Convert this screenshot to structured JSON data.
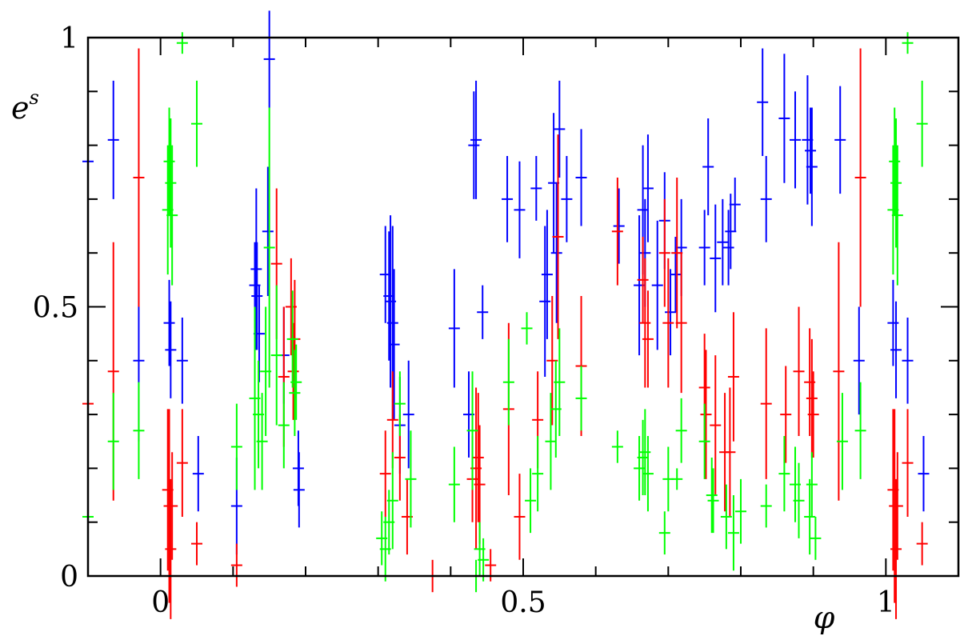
{
  "chart_data": {
    "type": "scatter",
    "title": "",
    "xlabel": "φ",
    "ylabel_base": "e",
    "ylabel_sup": "s",
    "xlim": [
      -0.1,
      1.1
    ],
    "ylim": [
      0,
      1
    ],
    "x_ticks": [
      {
        "value": 0,
        "label": "0"
      },
      {
        "value": 0.5,
        "label": "0.5"
      },
      {
        "value": 1,
        "label": "1"
      }
    ],
    "y_ticks": [
      {
        "value": 0,
        "label": "0"
      },
      {
        "value": 0.5,
        "label": "0.5"
      },
      {
        "value": 1,
        "label": "1"
      }
    ],
    "x_minor_step": 0.1,
    "y_minor_step": 0.1,
    "grid": false,
    "series": [
      {
        "color": "#0000ff",
        "points": [
          [
            -0.1,
            0.77,
            0.07
          ],
          [
            -0.065,
            0.81,
            0.11
          ],
          [
            -0.03,
            0.4,
            0.15
          ],
          [
            0.012,
            0.47,
            0.08
          ],
          [
            0.014,
            0.42,
            0.09
          ],
          [
            0.03,
            0.4,
            0.08
          ],
          [
            0.052,
            0.19,
            0.07
          ],
          [
            0.105,
            0.13,
            0.09
          ],
          [
            0.13,
            0.54,
            0.08
          ],
          [
            0.132,
            0.57,
            0.15
          ],
          [
            0.133,
            0.52,
            0.1
          ],
          [
            0.136,
            0.45,
            0.09
          ],
          [
            0.148,
            0.64,
            0.12
          ],
          [
            0.15,
            0.96,
            0.09
          ],
          [
            0.17,
            0.41,
            0.09
          ],
          [
            0.19,
            0.2,
            0.07
          ],
          [
            0.191,
            0.16,
            0.07
          ],
          [
            0.31,
            0.56,
            0.09
          ],
          [
            0.315,
            0.52,
            0.12
          ],
          [
            0.317,
            0.51,
            0.16
          ],
          [
            0.32,
            0.47,
            0.18
          ],
          [
            0.322,
            0.43,
            0.14
          ],
          [
            0.33,
            0.28,
            0.09
          ],
          [
            0.342,
            0.3,
            0.1
          ],
          [
            0.405,
            0.46,
            0.11
          ],
          [
            0.425,
            0.3,
            0.08
          ],
          [
            0.432,
            0.8,
            0.1
          ],
          [
            0.435,
            0.81,
            0.11
          ],
          [
            0.444,
            0.49,
            0.05
          ],
          [
            0.478,
            0.7,
            0.08
          ],
          [
            0.495,
            0.68,
            0.09
          ],
          [
            0.518,
            0.72,
            0.06
          ],
          [
            0.53,
            0.51,
            0.14
          ],
          [
            0.533,
            0.56,
            0.12
          ],
          [
            0.542,
            0.73,
            0.13
          ],
          [
            0.546,
            0.6,
            0.13
          ],
          [
            0.55,
            0.83,
            0.09
          ],
          [
            0.56,
            0.7,
            0.08
          ],
          [
            0.58,
            0.74,
            0.09
          ],
          [
            0.632,
            0.65,
            0.07
          ],
          [
            0.66,
            0.54,
            0.13
          ],
          [
            0.665,
            0.68,
            0.12
          ],
          [
            0.668,
            0.6,
            0.1
          ],
          [
            0.672,
            0.72,
            0.1
          ],
          [
            0.685,
            0.54,
            0.12
          ],
          [
            0.695,
            0.66,
            0.09
          ],
          [
            0.703,
            0.49,
            0.08
          ],
          [
            0.71,
            0.56,
            0.07
          ],
          [
            0.718,
            0.61,
            0.09
          ],
          [
            0.75,
            0.61,
            0.07
          ],
          [
            0.755,
            0.76,
            0.09
          ],
          [
            0.765,
            0.59,
            0.1
          ],
          [
            0.775,
            0.62,
            0.08
          ],
          [
            0.783,
            0.61,
            0.07
          ],
          [
            0.786,
            0.64,
            0.07
          ],
          [
            0.792,
            0.69,
            0.05
          ],
          [
            0.83,
            0.88,
            0.1
          ],
          [
            0.835,
            0.7,
            0.08
          ],
          [
            0.86,
            0.85,
            0.12
          ],
          [
            0.875,
            0.81,
            0.09
          ],
          [
            0.892,
            0.81,
            0.12
          ],
          [
            0.896,
            0.79,
            0.08
          ],
          [
            0.898,
            0.76,
            0.11
          ],
          [
            0.937,
            0.81,
            0.1
          ],
          [
            0.963,
            0.4,
            0.1
          ],
          [
            1.01,
            0.47,
            0.08
          ],
          [
            1.014,
            0.42,
            0.09
          ],
          [
            1.03,
            0.4,
            0.08
          ],
          [
            1.052,
            0.19,
            0.07
          ]
        ]
      },
      {
        "color": "#ff0000",
        "points": [
          [
            -0.1,
            0.32,
            0.18
          ],
          [
            -0.065,
            0.38,
            0.24
          ],
          [
            -0.03,
            0.74,
            0.24
          ],
          [
            0.01,
            0.16,
            0.15
          ],
          [
            0.012,
            0.13,
            0.18
          ],
          [
            0.014,
            0.05,
            0.13
          ],
          [
            0.016,
            0.13,
            0.1
          ],
          [
            0.03,
            0.21,
            0.1
          ],
          [
            0.05,
            0.06,
            0.04
          ],
          [
            0.105,
            0.02,
            0.04
          ],
          [
            0.16,
            0.58,
            0.14
          ],
          [
            0.17,
            0.37,
            0.13
          ],
          [
            0.18,
            0.5,
            0.09
          ],
          [
            0.183,
            0.38,
            0.09
          ],
          [
            0.185,
            0.44,
            0.11
          ],
          [
            0.31,
            0.19,
            0.08
          ],
          [
            0.32,
            0.29,
            0.09
          ],
          [
            0.33,
            0.22,
            0.08
          ],
          [
            0.34,
            0.11,
            0.07
          ],
          [
            0.375,
            0.0,
            0.03
          ],
          [
            0.43,
            0.18,
            0.08
          ],
          [
            0.435,
            0.2,
            0.15
          ],
          [
            0.438,
            0.22,
            0.12
          ],
          [
            0.44,
            0.17,
            0.11
          ],
          [
            0.455,
            0.02,
            0.03
          ],
          [
            0.48,
            0.31,
            0.16
          ],
          [
            0.495,
            0.11,
            0.08
          ],
          [
            0.52,
            0.29,
            0.09
          ],
          [
            0.54,
            0.4,
            0.12
          ],
          [
            0.548,
            0.63,
            0.19
          ],
          [
            0.58,
            0.39,
            0.13
          ],
          [
            0.63,
            0.64,
            0.1
          ],
          [
            0.665,
            0.55,
            0.08
          ],
          [
            0.668,
            0.47,
            0.12
          ],
          [
            0.672,
            0.44,
            0.09
          ],
          [
            0.695,
            0.6,
            0.1
          ],
          [
            0.7,
            0.47,
            0.12
          ],
          [
            0.712,
            0.6,
            0.14
          ],
          [
            0.718,
            0.47,
            0.13
          ],
          [
            0.75,
            0.35,
            0.1
          ],
          [
            0.752,
            0.3,
            0.12
          ],
          [
            0.765,
            0.28,
            0.13
          ],
          [
            0.778,
            0.23,
            0.11
          ],
          [
            0.785,
            0.23,
            0.12
          ],
          [
            0.79,
            0.37,
            0.12
          ],
          [
            0.835,
            0.32,
            0.14
          ],
          [
            0.862,
            0.3,
            0.09
          ],
          [
            0.88,
            0.38,
            0.12
          ],
          [
            0.895,
            0.36,
            0.1
          ],
          [
            0.898,
            0.33,
            0.11
          ],
          [
            0.9,
            0.3,
            0.08
          ],
          [
            0.935,
            0.38,
            0.24
          ],
          [
            0.965,
            0.74,
            0.24
          ],
          [
            1.01,
            0.16,
            0.15
          ],
          [
            1.012,
            0.13,
            0.18
          ],
          [
            1.014,
            0.05,
            0.13
          ],
          [
            1.016,
            0.13,
            0.1
          ],
          [
            1.03,
            0.21,
            0.1
          ],
          [
            1.05,
            0.06,
            0.04
          ]
        ]
      },
      {
        "color": "#00ff00",
        "points": [
          [
            -0.1,
            0.11,
            0.08
          ],
          [
            -0.065,
            0.25,
            0.09
          ],
          [
            -0.03,
            0.27,
            0.09
          ],
          [
            0.01,
            0.68,
            0.12
          ],
          [
            0.012,
            0.77,
            0.1
          ],
          [
            0.014,
            0.73,
            0.12
          ],
          [
            0.016,
            0.67,
            0.13
          ],
          [
            0.03,
            0.99,
            0.02
          ],
          [
            0.05,
            0.84,
            0.08
          ],
          [
            0.105,
            0.24,
            0.08
          ],
          [
            0.13,
            0.33,
            0.17
          ],
          [
            0.135,
            0.3,
            0.1
          ],
          [
            0.14,
            0.25,
            0.09
          ],
          [
            0.145,
            0.38,
            0.12
          ],
          [
            0.15,
            0.61,
            0.26
          ],
          [
            0.16,
            0.41,
            0.13
          ],
          [
            0.17,
            0.28,
            0.08
          ],
          [
            0.182,
            0.44,
            0.09
          ],
          [
            0.185,
            0.34,
            0.08
          ],
          [
            0.187,
            0.36,
            0.07
          ],
          [
            0.305,
            0.07,
            0.05
          ],
          [
            0.31,
            0.05,
            0.06
          ],
          [
            0.315,
            0.1,
            0.06
          ],
          [
            0.32,
            0.14,
            0.09
          ],
          [
            0.33,
            0.32,
            0.06
          ],
          [
            0.345,
            0.18,
            0.09
          ],
          [
            0.405,
            0.17,
            0.07
          ],
          [
            0.43,
            0.27,
            0.11
          ],
          [
            0.435,
            0.0,
            0.03
          ],
          [
            0.44,
            0.05,
            0.05
          ],
          [
            0.445,
            0.03,
            0.04
          ],
          [
            0.48,
            0.36,
            0.08
          ],
          [
            0.505,
            0.46,
            0.03
          ],
          [
            0.51,
            0.14,
            0.06
          ],
          [
            0.52,
            0.19,
            0.07
          ],
          [
            0.538,
            0.25,
            0.09
          ],
          [
            0.545,
            0.31,
            0.09
          ],
          [
            0.55,
            0.36,
            0.1
          ],
          [
            0.58,
            0.33,
            0.06
          ],
          [
            0.63,
            0.24,
            0.03
          ],
          [
            0.66,
            0.2,
            0.06
          ],
          [
            0.665,
            0.22,
            0.07
          ],
          [
            0.668,
            0.23,
            0.08
          ],
          [
            0.672,
            0.19,
            0.07
          ],
          [
            0.695,
            0.08,
            0.04
          ],
          [
            0.7,
            0.18,
            0.06
          ],
          [
            0.712,
            0.18,
            0.02
          ],
          [
            0.718,
            0.27,
            0.06
          ],
          [
            0.75,
            0.25,
            0.07
          ],
          [
            0.76,
            0.15,
            0.07
          ],
          [
            0.762,
            0.14,
            0.06
          ],
          [
            0.78,
            0.11,
            0.06
          ],
          [
            0.79,
            0.08,
            0.07
          ],
          [
            0.8,
            0.12,
            0.06
          ],
          [
            0.835,
            0.13,
            0.04
          ],
          [
            0.86,
            0.19,
            0.07
          ],
          [
            0.875,
            0.17,
            0.07
          ],
          [
            0.88,
            0.14,
            0.07
          ],
          [
            0.895,
            0.11,
            0.07
          ],
          [
            0.898,
            0.17,
            0.06
          ],
          [
            0.903,
            0.07,
            0.04
          ],
          [
            0.94,
            0.25,
            0.09
          ],
          [
            0.965,
            0.27,
            0.09
          ],
          [
            1.01,
            0.68,
            0.12
          ],
          [
            1.012,
            0.77,
            0.1
          ],
          [
            1.014,
            0.73,
            0.12
          ],
          [
            1.016,
            0.67,
            0.13
          ],
          [
            1.03,
            0.99,
            0.02
          ],
          [
            1.05,
            0.84,
            0.08
          ]
        ]
      }
    ]
  }
}
